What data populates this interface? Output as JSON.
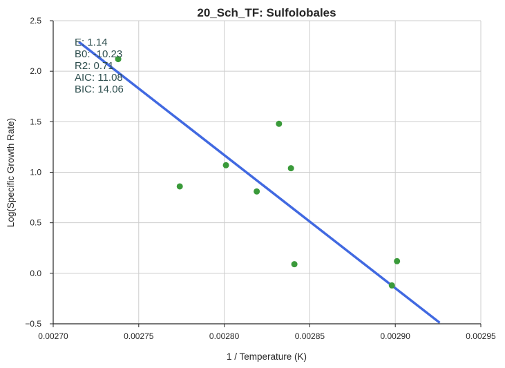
{
  "chart_data": {
    "type": "scatter",
    "title": "20_Sch_TF: Sulfolobales",
    "xlabel": "1 / Temperature (K)",
    "ylabel": "Log(Specific Growth Rate)",
    "xlim": [
      0.0027,
      0.00295
    ],
    "ylim": [
      -0.5,
      2.5
    ],
    "xticks": [
      "0.00270",
      "0.00275",
      "0.00280",
      "0.00285",
      "0.00290",
      "0.00295"
    ],
    "yticks": [
      "2.5",
      "2.0",
      "1.5",
      "1.0",
      "0.5",
      "0.0",
      "−0.5"
    ],
    "xtick_values": [
      0.0027,
      0.00275,
      0.0028,
      0.00285,
      0.0029,
      0.00295
    ],
    "ytick_values": [
      2.5,
      2.0,
      1.5,
      1.0,
      0.5,
      0.0,
      -0.5
    ],
    "grid": true,
    "points": [
      {
        "x": 0.002738,
        "y": 2.12
      },
      {
        "x": 0.002774,
        "y": 0.86
      },
      {
        "x": 0.002801,
        "y": 1.07
      },
      {
        "x": 0.002819,
        "y": 0.81
      },
      {
        "x": 0.002832,
        "y": 1.48
      },
      {
        "x": 0.002839,
        "y": 1.04
      },
      {
        "x": 0.002841,
        "y": 0.09
      },
      {
        "x": 0.002898,
        "y": -0.12
      },
      {
        "x": 0.002901,
        "y": 0.12
      }
    ],
    "fit_line": {
      "x": [
        0.002715,
        0.002926
      ],
      "y": [
        2.29,
        -0.49
      ]
    },
    "colors": {
      "points": "#3a9a3a",
      "line": "#4169e1",
      "grid": "#cccccc",
      "stats_text": "#2f4f4f"
    },
    "annotations": [
      "E:  1.14",
      "B0:  -10.23",
      "R2:  0.71",
      "AIC: 11.08",
      "BIC: 14.06"
    ]
  }
}
